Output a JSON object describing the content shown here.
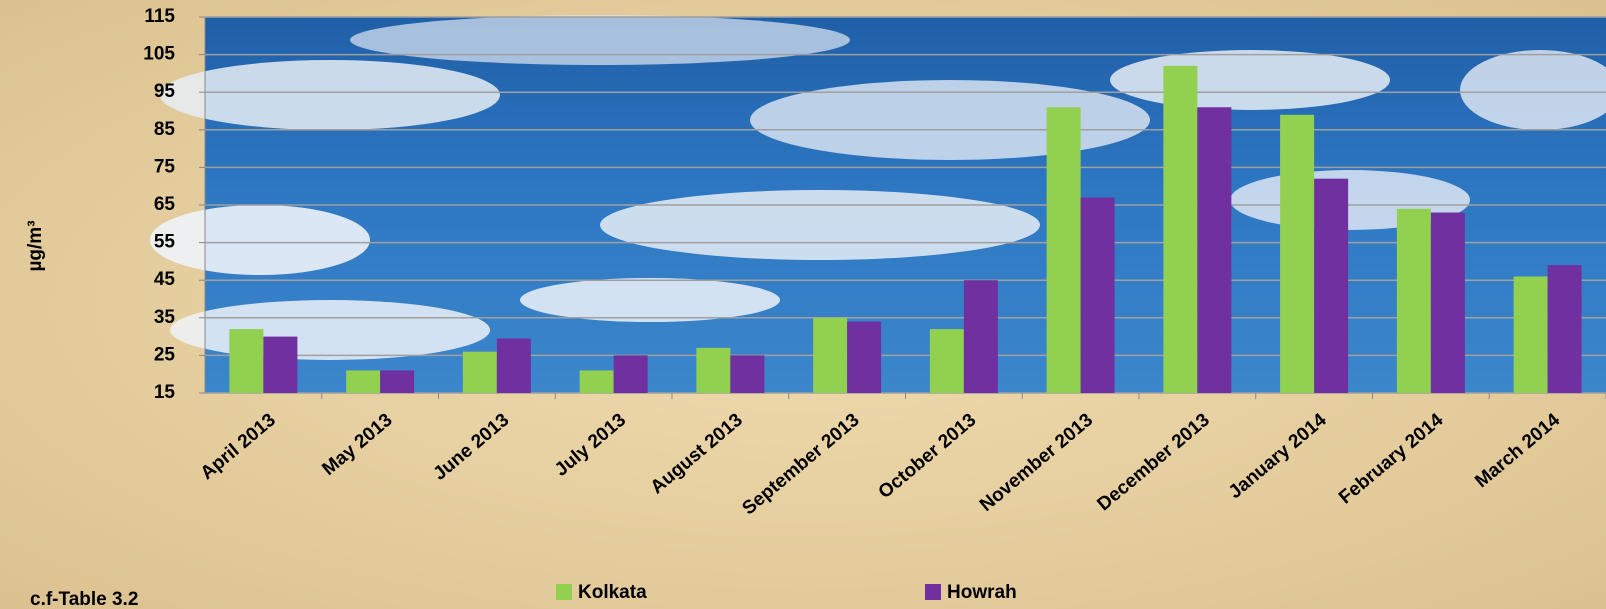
{
  "chart_data": {
    "type": "bar",
    "y_label": "µg/m³",
    "note": "c.f-Table 3.2",
    "categories": [
      "April 2013",
      "May 2013",
      "June 2013",
      "July 2013",
      "August 2013",
      "September 2013",
      "October 2013",
      "November 2013",
      "December 2013",
      "January 2014",
      "February 2014",
      "March 2014"
    ],
    "series": [
      {
        "name": "Kolkata",
        "color": "#92d050",
        "values": [
          32,
          21,
          26,
          21,
          27,
          35,
          32,
          91,
          102,
          89,
          64,
          46
        ]
      },
      {
        "name": "Howrah",
        "color": "#7030a0",
        "values": [
          30,
          21,
          29.5,
          25,
          25,
          34,
          45,
          67,
          91,
          72,
          63,
          49
        ]
      }
    ],
    "ylim": [
      15,
      115
    ],
    "yticks": [
      15,
      25,
      35,
      45,
      55,
      65,
      75,
      85,
      95,
      105,
      115
    ],
    "grid": true,
    "legend": "bottom"
  }
}
